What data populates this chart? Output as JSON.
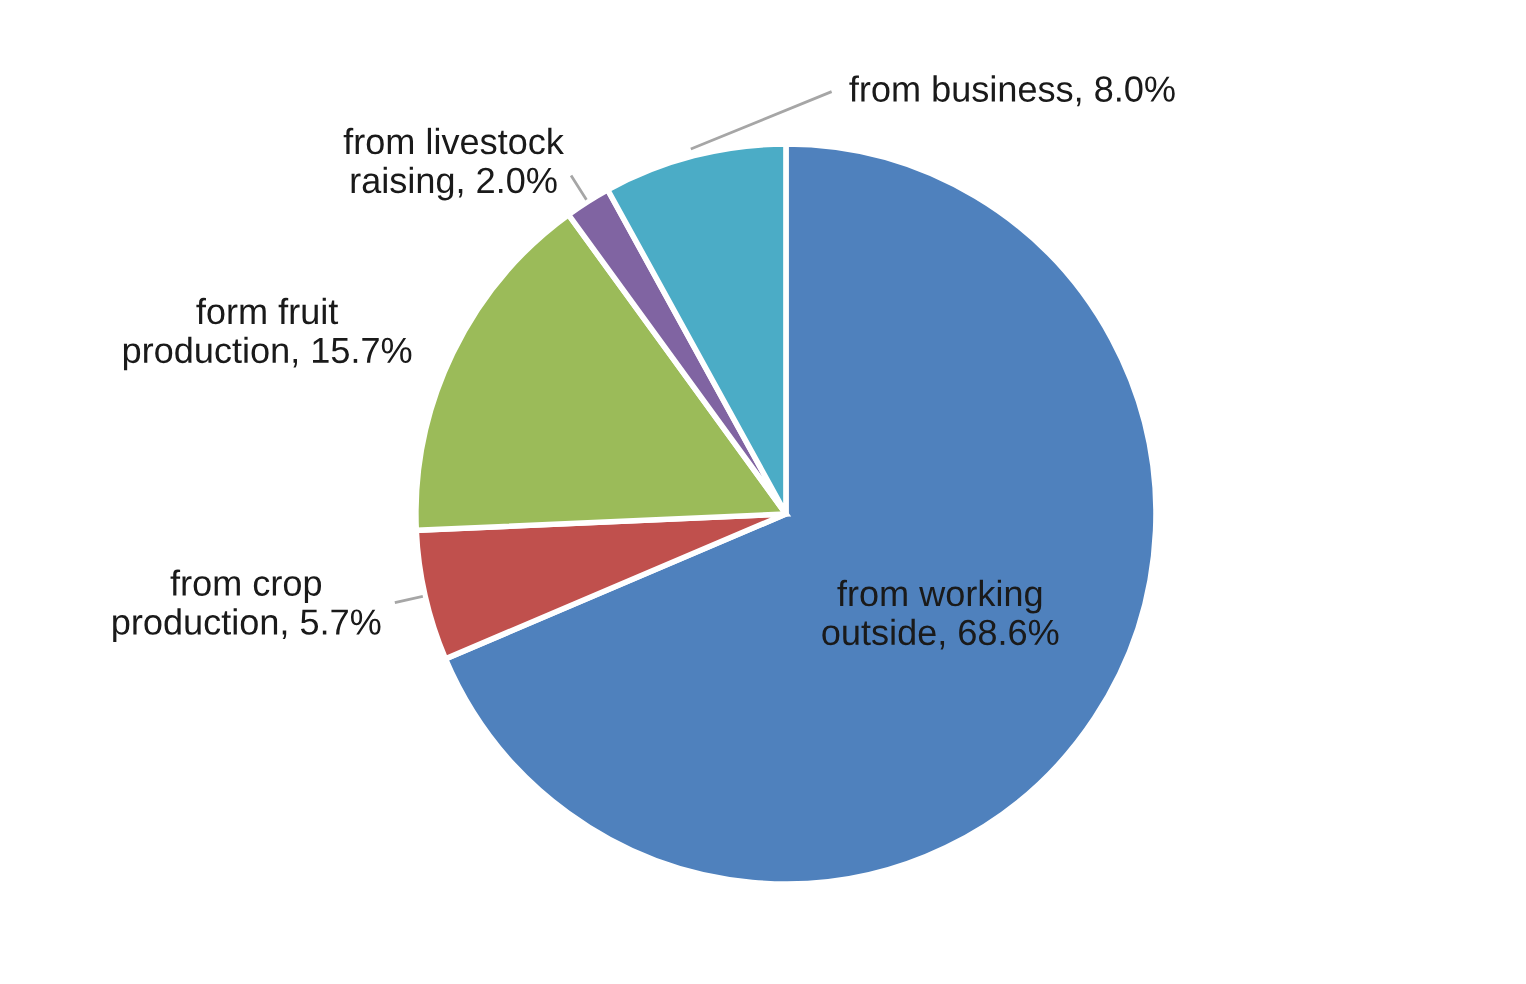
{
  "chart_data": {
    "type": "pie",
    "categories": [
      "from working outside",
      "from crop production",
      "form fruit production",
      "from livestock raising",
      "from business"
    ],
    "value_labels": [
      "68.6%",
      "5.7%",
      "15.7%",
      "2.0%",
      "8.0%"
    ],
    "values": [
      68.6,
      5.7,
      15.7,
      2.0,
      8.0
    ],
    "colors": [
      "#4f81bd",
      "#c0504d",
      "#9bbb59",
      "#8064a2",
      "#4bacc6"
    ]
  }
}
